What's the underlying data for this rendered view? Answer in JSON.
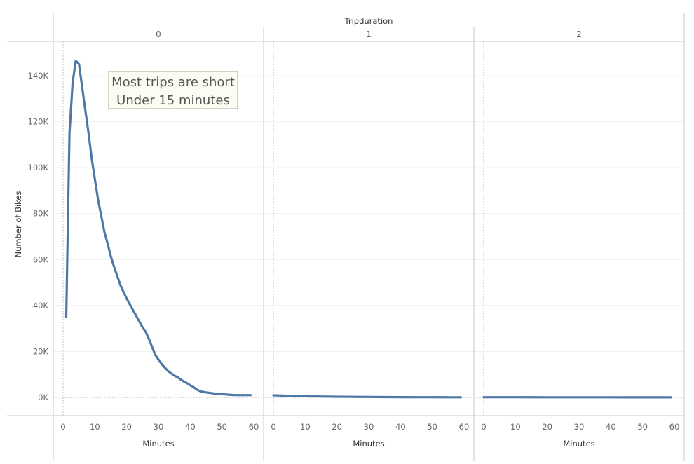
{
  "chart_data": {
    "type": "line",
    "facet_title": "Tripduration",
    "ylabel": "Number of Bikes",
    "ylim": [
      0,
      147000
    ],
    "yticks": [
      0,
      20000,
      40000,
      60000,
      80000,
      100000,
      120000,
      140000
    ],
    "ytick_labels": [
      "0K",
      "20K",
      "40K",
      "60K",
      "80K",
      "100K",
      "120K",
      "140K"
    ],
    "xlim": [
      0,
      60
    ],
    "xticks": [
      0,
      10,
      20,
      30,
      40,
      50,
      60
    ],
    "xtick_labels": [
      "0",
      "10",
      "20",
      "30",
      "40",
      "50",
      "60"
    ],
    "grid": true,
    "colors": {
      "line": "#4E79A7",
      "grid": "#efefef",
      "border": "#c8c8c8",
      "annotation_bg": "#fcfcf2",
      "annotation_border": "#a9a98f"
    },
    "panes": [
      {
        "header": "0",
        "xlabel": "Minutes",
        "series": [
          {
            "x": [
              1,
              2,
              3,
              4,
              5,
              6,
              7,
              8,
              9,
              10,
              11,
              12,
              13,
              14,
              15,
              16,
              17,
              18,
              19,
              20,
              21,
              22,
              23,
              24,
              25,
              26,
              27,
              28,
              29,
              30,
              31,
              32,
              33,
              34,
              35,
              36,
              37,
              38,
              39,
              40,
              41,
              42,
              43,
              44,
              45,
              46,
              47,
              48,
              49,
              50,
              51,
              52,
              53,
              54,
              55,
              56,
              57,
              58,
              59
            ],
            "y": [
              35000,
              115000,
              137000,
              146500,
              145000,
              135000,
              125000,
              115000,
              104000,
              95000,
              86000,
              79000,
              72000,
              67000,
              61500,
              57000,
              53000,
              49000,
              46000,
              43000,
              40500,
              38000,
              35500,
              33000,
              30500,
              28500,
              25500,
              22000,
              18500,
              16500,
              14500,
              13000,
              11500,
              10500,
              9500,
              8800,
              7800,
              6900,
              6200,
              5300,
              4500,
              3500,
              2800,
              2400,
              2200,
              2000,
              1800,
              1600,
              1500,
              1400,
              1300,
              1200,
              1100,
              1000,
              1000,
              1000,
              1000,
              1000,
              1000
            ]
          }
        ]
      },
      {
        "header": "1",
        "xlabel": "Minutes",
        "series": [
          {
            "x": [
              0,
              5,
              10,
              15,
              20,
              25,
              30,
              35,
              40,
              45,
              50,
              55,
              59
            ],
            "y": [
              900,
              700,
              500,
              400,
              300,
              250,
              200,
              150,
              120,
              100,
              80,
              60,
              50
            ]
          }
        ]
      },
      {
        "header": "2",
        "xlabel": "Minutes",
        "series": [
          {
            "x": [
              0,
              10,
              20,
              30,
              40,
              50,
              59
            ],
            "y": [
              100,
              80,
              70,
              60,
              50,
              40,
              30
            ]
          }
        ]
      }
    ],
    "annotation": {
      "pane": 0,
      "lines": [
        "Most trips are short",
        "Under 15 minutes"
      ]
    }
  }
}
